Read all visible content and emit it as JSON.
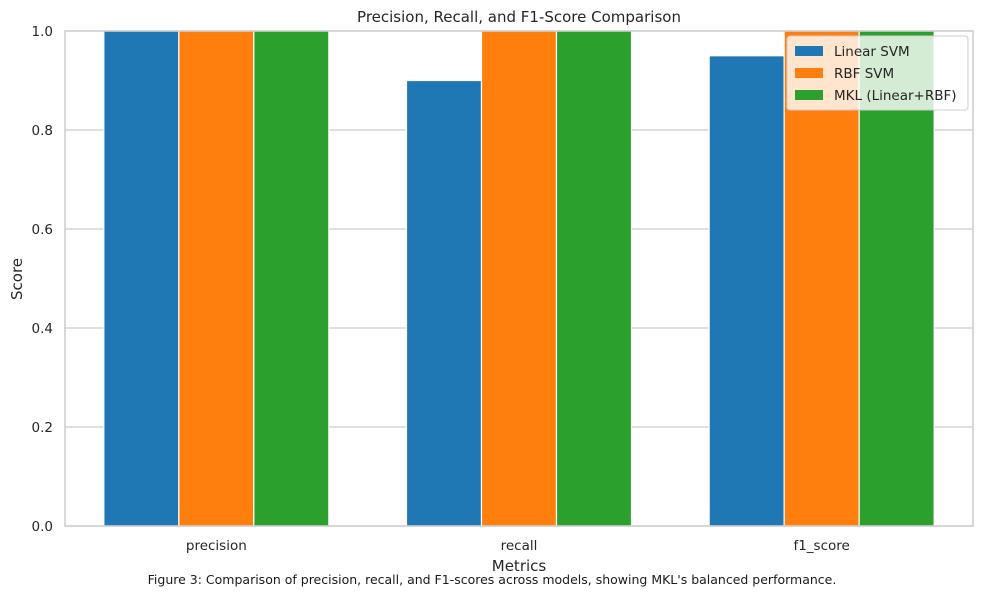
{
  "caption": "Figure 3: Comparison of precision, recall, and F1-scores across models, showing MKL's balanced performance.",
  "chart_data": {
    "type": "bar",
    "title": "Precision, Recall, and F1-Score Comparison",
    "xlabel": "Metrics",
    "ylabel": "Score",
    "categories": [
      "precision",
      "recall",
      "f1_score"
    ],
    "series": [
      {
        "name": "Linear SVM",
        "color": "#1f77b4",
        "values": [
          1.0,
          0.9,
          0.95
        ]
      },
      {
        "name": "RBF SVM",
        "color": "#ff7f0e",
        "values": [
          1.0,
          1.0,
          1.0
        ]
      },
      {
        "name": "MKL (Linear+RBF)",
        "color": "#2ca02c",
        "values": [
          1.0,
          1.0,
          1.0
        ]
      }
    ],
    "ylim": [
      0,
      1.0
    ],
    "yticks": [
      "0.0",
      "0.2",
      "0.4",
      "0.6",
      "0.8",
      "1.0"
    ],
    "grid": true,
    "legend_position": "top-right"
  }
}
